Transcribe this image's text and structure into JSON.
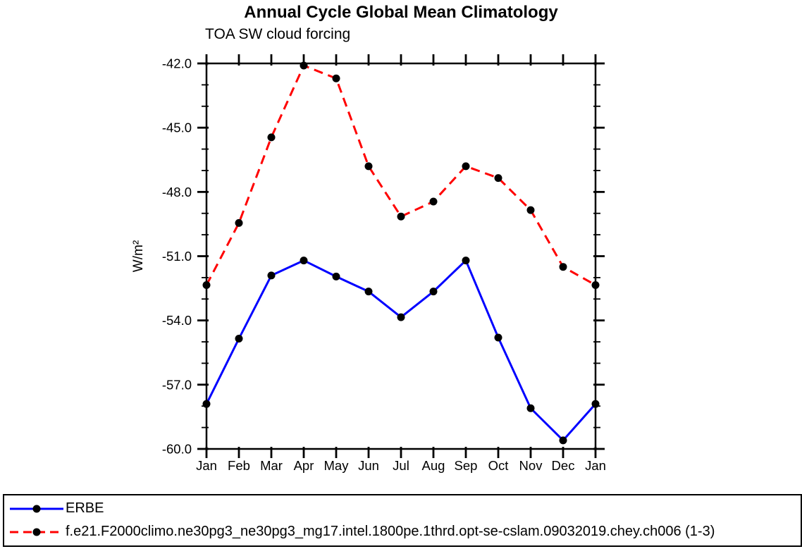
{
  "title": "Annual Cycle Global Mean Climatology",
  "subtitle": "TOA SW cloud forcing",
  "chart_data": {
    "type": "line",
    "title": "Annual Cycle Global Mean Climatology",
    "subtitle": "TOA SW cloud forcing",
    "xlabel": "",
    "ylabel": "W/m²",
    "categories": [
      "Jan",
      "Feb",
      "Mar",
      "Apr",
      "May",
      "Jun",
      "Jul",
      "Aug",
      "Sep",
      "Oct",
      "Nov",
      "Dec",
      "Jan"
    ],
    "ylim": [
      -60.0,
      -42.0
    ],
    "yticks_major": [
      -42.0,
      -45.0,
      -48.0,
      -51.0,
      -54.0,
      -57.0,
      -60.0
    ],
    "ytick_labels": [
      "-42.0",
      "-45.0",
      "-48.0",
      "-51.0",
      "-54.0",
      "-57.0",
      "-60.0"
    ],
    "yminor_step": 1.0,
    "grid": false,
    "legend_position": "bottom",
    "marker": "filled-black-circle",
    "series": [
      {
        "name": "ERBE",
        "color": "#0000ff",
        "line_style": "solid",
        "marker_color": "#000000",
        "values": [
          -57.9,
          -54.85,
          -51.9,
          -51.2,
          -51.95,
          -52.65,
          -53.85,
          -52.65,
          -51.2,
          -54.8,
          -58.1,
          -59.6,
          -57.9
        ]
      },
      {
        "name": "f.e21.F2000climo.ne30pg3_ne30pg3_mg17.intel.1800pe.1thrd.opt-se-cslam.09032019.chey.ch006 (1-3)",
        "color": "#ff0000",
        "line_style": "dashed",
        "marker_color": "#000000",
        "values": [
          -52.35,
          -49.45,
          -45.45,
          -42.1,
          -42.7,
          -46.8,
          -49.15,
          -48.45,
          -46.8,
          -47.35,
          -48.85,
          -51.5,
          -52.35
        ]
      }
    ]
  },
  "colors": {
    "axis": "#000000",
    "background": "#ffffff"
  }
}
